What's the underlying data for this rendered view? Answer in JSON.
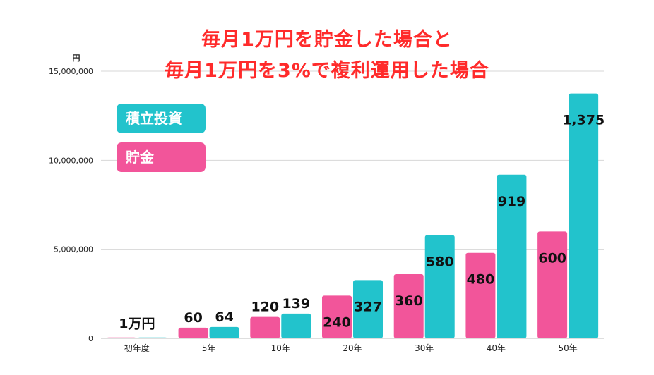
{
  "title_lines": [
    "毎月1万円を貯金した場合と",
    "毎月1万円を3%で複利運用した場合"
  ],
  "colors": {
    "title": "#ff2b2b",
    "saving": "#f2559a",
    "invest": "#22c3cc",
    "grid": "#d7d7d7"
  },
  "chart_data": {
    "type": "bar",
    "title": "毎月1万円を貯金した場合と 毎月1万円を3%で複利運用した場合",
    "ylabel": "円",
    "categories": [
      "初年度",
      "5年",
      "10年",
      "20年",
      "30年",
      "40年",
      "50年"
    ],
    "ylim": [
      0,
      15000000
    ],
    "yticks": [
      0,
      5000000,
      10000000,
      15000000
    ],
    "ytick_labels": [
      "0",
      "5,000,000",
      "10,000,000",
      "15,000,000"
    ],
    "grid": true,
    "legend_position": "top-left",
    "series": [
      {
        "name": "貯金",
        "color": "#f2559a",
        "values": [
          10000,
          600000,
          1200000,
          2400000,
          3600000,
          4800000,
          6000000
        ],
        "labels": [
          "1万円",
          "60",
          "120",
          "240",
          "360",
          "480",
          "600"
        ]
      },
      {
        "name": "積立投資",
        "color": "#22c3cc",
        "values": [
          10000,
          640000,
          1390000,
          3270000,
          5800000,
          9190000,
          13750000
        ],
        "labels": [
          "",
          "64",
          "139",
          "327",
          "580",
          "919",
          "1,375"
        ]
      }
    ]
  }
}
